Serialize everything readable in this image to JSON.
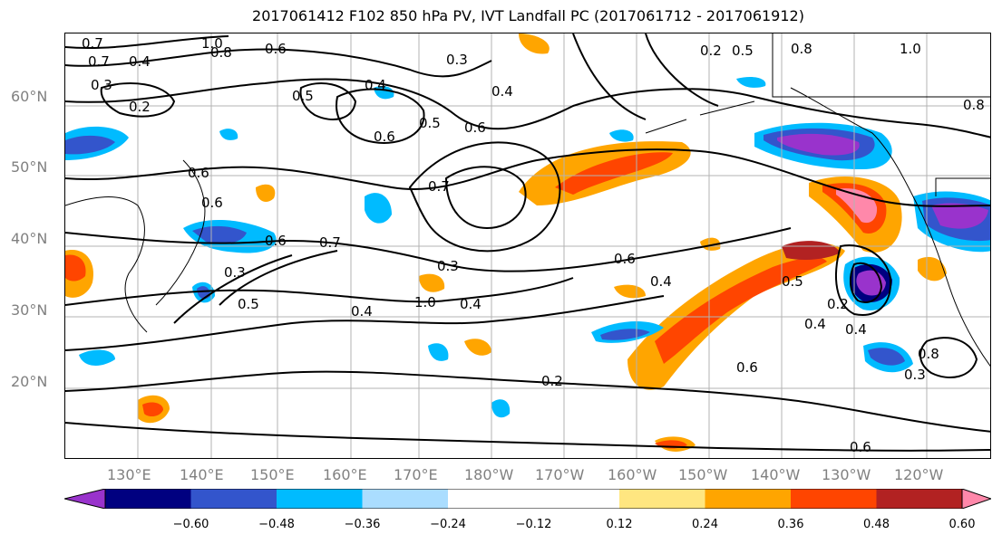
{
  "title": "2017061412 F102 850 hPa PV, IVT Landfall PC (2017061712 - 2017061912)",
  "lat_labels": [
    "60°N",
    "50°N",
    "40°N",
    "30°N",
    "20°N"
  ],
  "lon_labels": [
    "130°E",
    "140°E",
    "150°E",
    "160°E",
    "170°E",
    "180°W",
    "170°W",
    "160°W",
    "150°W",
    "140°W",
    "130°W",
    "120°W"
  ],
  "contour_labels": [
    "0.7",
    "1.0",
    "0.8",
    "0.6",
    "0.7",
    "0.3",
    "0.4",
    "0.2",
    "0.5",
    "0.4",
    "0.6",
    "0.5",
    "0.3",
    "0.4",
    "0.6",
    "0.5",
    "0.2",
    "0.8",
    "1.0",
    "0.8",
    "0.7",
    "0.6",
    "0.6",
    "0.7",
    "0.6",
    "0.3",
    "0.5",
    "0.4",
    "1.0",
    "0.3",
    "0.4",
    "0.6",
    "0.4",
    "0.5",
    "0.4",
    "0.2",
    "0.4",
    "0.6",
    "0.8",
    "0.3",
    "0.2",
    "0.6"
  ],
  "colorbar": {
    "colors": [
      "#9933cc",
      "#000080",
      "#3355cc",
      "#00bbff",
      "#aaddff",
      "#ffffff",
      "#ffffff",
      "#ffe680",
      "#ffa500",
      "#ff4500",
      "#b22222",
      "#ff88aa"
    ],
    "ticks": [
      "−0.60",
      "−0.48",
      "−0.36",
      "−0.24",
      "−0.12",
      "0.12",
      "0.24",
      "0.36",
      "0.48",
      "0.60"
    ]
  }
}
